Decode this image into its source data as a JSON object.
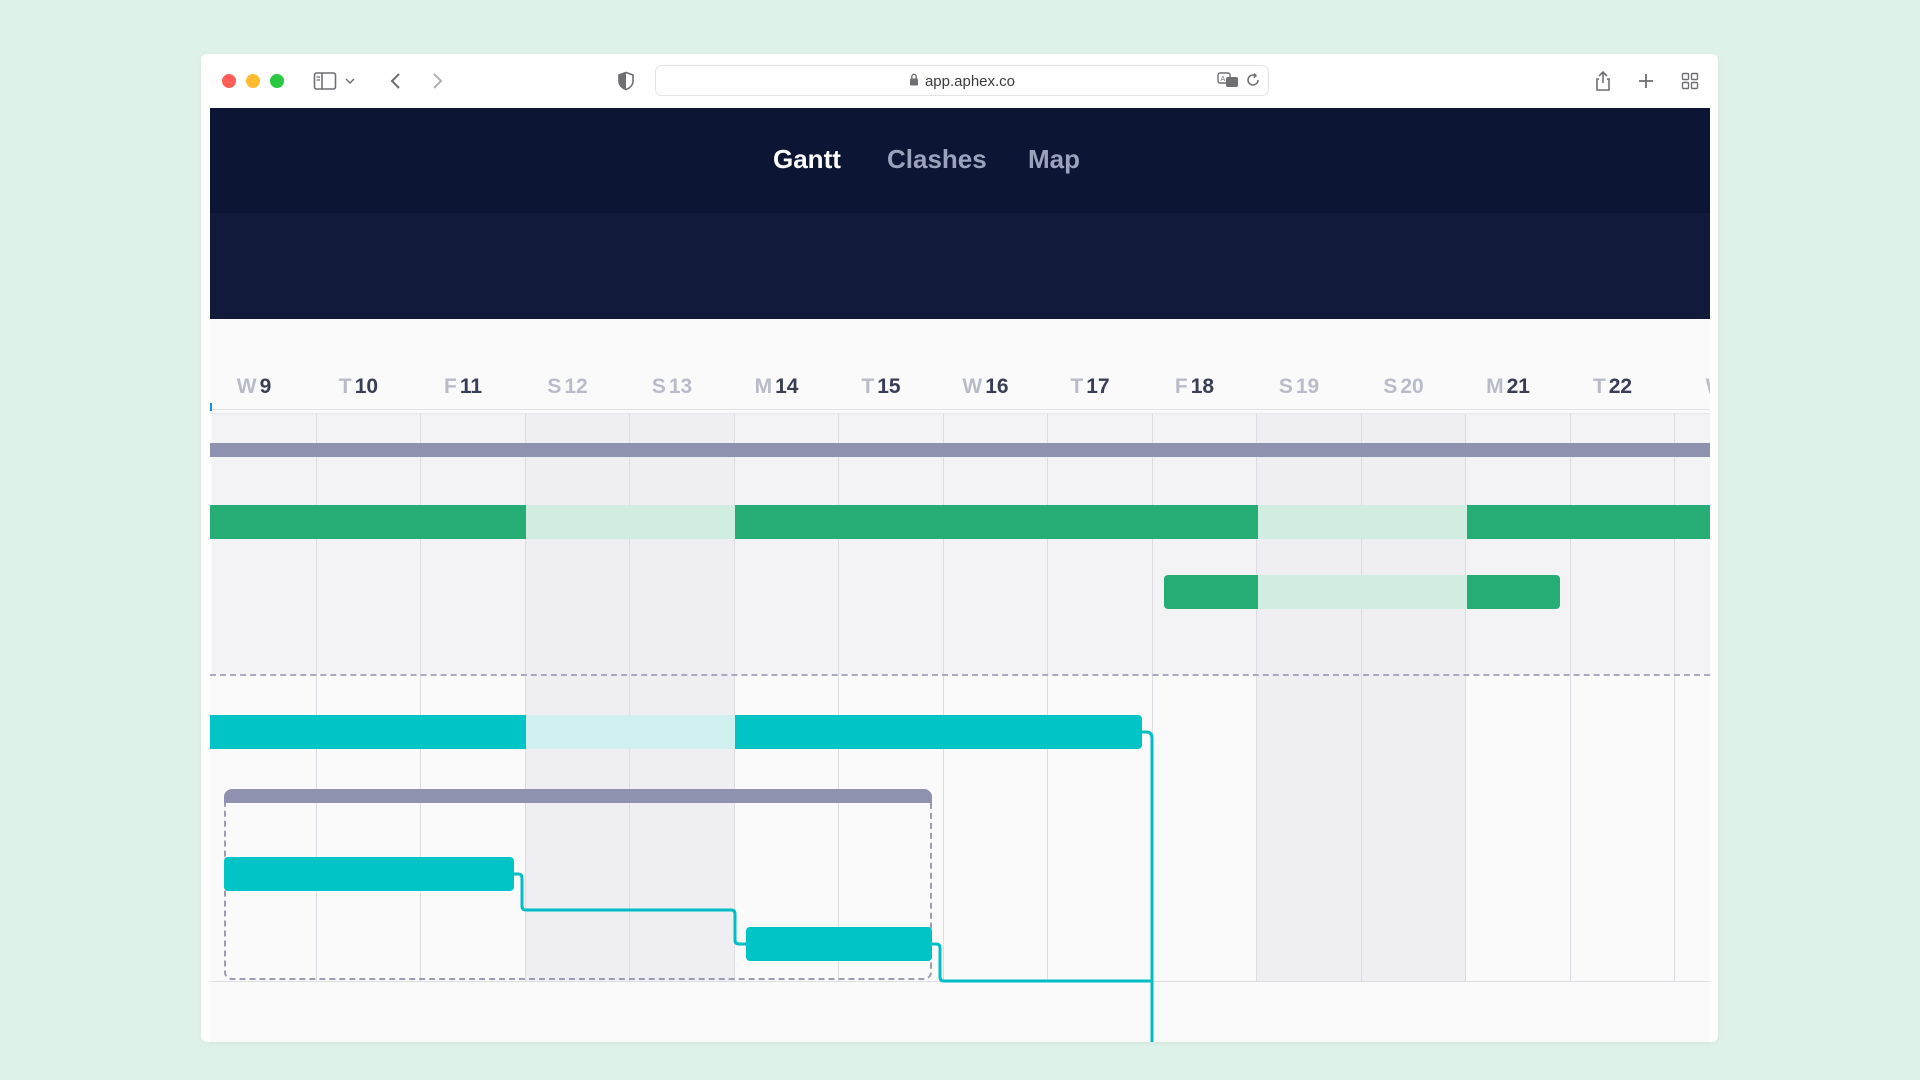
{
  "browser": {
    "url": "app.aphex.co",
    "icons": [
      "sidebar-icon",
      "chevron-down-icon",
      "back-icon",
      "forward-icon",
      "shield-icon",
      "lock-icon",
      "translate-icon",
      "reload-icon",
      "share-icon",
      "new-tab-icon",
      "tab-overview-icon"
    ]
  },
  "app": {
    "tabs": [
      {
        "label": "Gantt",
        "active": true
      },
      {
        "label": "Clashes",
        "active": false
      },
      {
        "label": "Map",
        "active": false
      }
    ]
  },
  "timeline": {
    "days": [
      {
        "weekday": "W",
        "day": "9",
        "weekend": false
      },
      {
        "weekday": "T",
        "day": "10",
        "weekend": false
      },
      {
        "weekday": "F",
        "day": "11",
        "weekend": false
      },
      {
        "weekday": "S",
        "day": "12",
        "weekend": true
      },
      {
        "weekday": "S",
        "day": "13",
        "weekend": true
      },
      {
        "weekday": "M",
        "day": "14",
        "weekend": false
      },
      {
        "weekday": "T",
        "day": "15",
        "weekend": false
      },
      {
        "weekday": "W",
        "day": "16",
        "weekend": false
      },
      {
        "weekday": "T",
        "day": "17",
        "weekend": false
      },
      {
        "weekday": "F",
        "day": "18",
        "weekend": false
      },
      {
        "weekday": "S",
        "day": "19",
        "weekend": true
      },
      {
        "weekday": "S",
        "day": "20",
        "weekend": true
      },
      {
        "weekday": "M",
        "day": "21",
        "weekend": false
      },
      {
        "weekday": "T",
        "day": "22",
        "weekend": false
      },
      {
        "weekday": "W",
        "day": "",
        "weekend": false
      }
    ]
  },
  "colors": {
    "header_bg": "#0d1535",
    "accent_blue": "#1e8ff0",
    "green_bar": "#26ad75",
    "green_bar_weekend": "#d1ece0",
    "cyan_bar": "#00c4c6",
    "cyan_bar_weekend": "#d1f1f1",
    "summary_bar": "#8f92ae",
    "connector": "#00bec4"
  }
}
